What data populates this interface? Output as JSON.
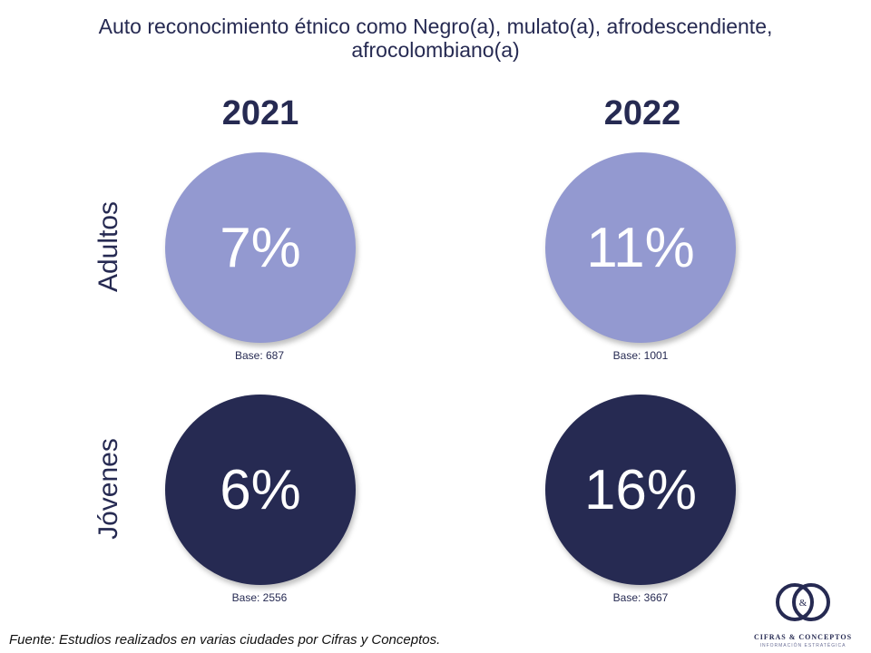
{
  "title": {
    "line1": "Auto reconocimiento étnico como Negro(a), mulato(a), afrodescendiente,",
    "line2": "afrocolombiano(a)"
  },
  "years": [
    "2021",
    "2022"
  ],
  "rows": [
    {
      "label": "Adultos",
      "color": "#9399d0",
      "cells": [
        {
          "value": "7%",
          "base": "Base: 687"
        },
        {
          "value": "11%",
          "base": "Base: 1001"
        }
      ]
    },
    {
      "label": "Jóvenes",
      "color": "#262a52",
      "cells": [
        {
          "value": "6%",
          "base": "Base: 2556"
        },
        {
          "value": "16%",
          "base": "Base: 3667"
        }
      ]
    }
  ],
  "source": "Fuente: Estudios realizados en varias ciudades por Cifras y Conceptos.",
  "logo": {
    "mark": "&",
    "name": "CIFRAS & CONCEPTOS",
    "tagline": "INFORMACIÓN ESTRATÉGICA"
  }
}
